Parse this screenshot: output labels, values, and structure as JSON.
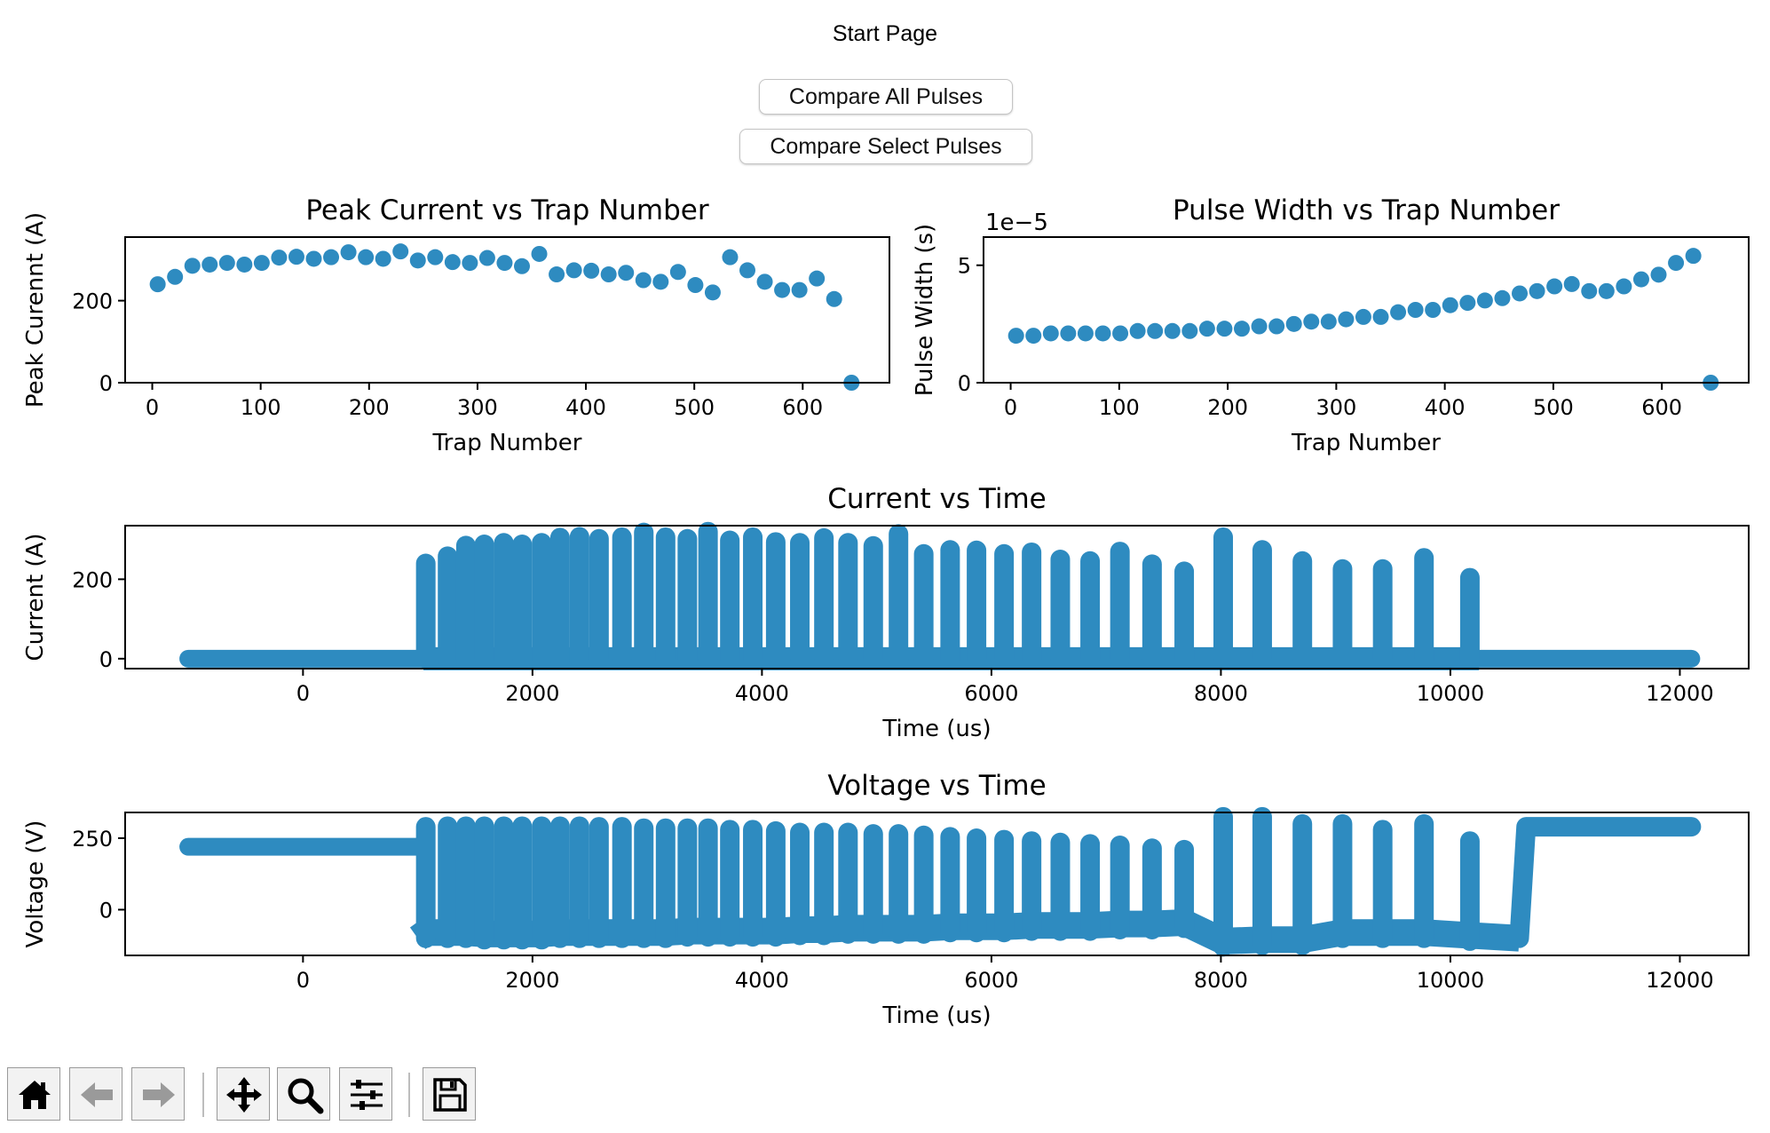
{
  "window": {
    "title": "Start Page"
  },
  "buttons": {
    "compare_all": "Compare All Pulses",
    "compare_select": "Compare Select Pulses"
  },
  "colors": {
    "series": "#2e8bc0",
    "axes": "#000000"
  },
  "toolbar": {
    "items": [
      {
        "name": "home",
        "icon": "home-icon"
      },
      {
        "name": "back",
        "icon": "arrow-left-icon"
      },
      {
        "name": "forward",
        "icon": "arrow-right-icon"
      },
      {
        "name": "pan",
        "icon": "move-icon"
      },
      {
        "name": "zoom",
        "icon": "magnifier-icon"
      },
      {
        "name": "configure",
        "icon": "sliders-icon"
      },
      {
        "name": "save",
        "icon": "floppy-disk-icon"
      }
    ]
  },
  "chart_data": [
    {
      "type": "scatter",
      "title": "Peak Current vs Trap Number",
      "xlabel": "Trap Number",
      "ylabel": "Peak Curennt (A)",
      "xlim": [
        -25,
        680
      ],
      "ylim": [
        0,
        355
      ],
      "xticks": [
        0,
        100,
        200,
        300,
        400,
        500,
        600
      ],
      "yticks": [
        0,
        200
      ],
      "offset_text": "",
      "x": [
        5,
        21,
        37,
        53,
        69,
        85,
        101,
        117,
        133,
        149,
        165,
        181,
        197,
        213,
        229,
        245,
        261,
        277,
        293,
        309,
        325,
        341,
        357,
        373,
        389,
        405,
        421,
        437,
        453,
        469,
        485,
        501,
        517,
        533,
        549,
        565,
        581,
        597,
        613,
        629,
        645
      ],
      "y": [
        240,
        258,
        285,
        288,
        292,
        288,
        292,
        305,
        307,
        302,
        306,
        318,
        306,
        302,
        320,
        298,
        306,
        294,
        292,
        304,
        292,
        284,
        314,
        264,
        274,
        273,
        264,
        268,
        250,
        246,
        270,
        238,
        220,
        306,
        274,
        246,
        226,
        226,
        254,
        204,
        0
      ]
    },
    {
      "type": "scatter",
      "title": "Pulse Width vs Trap Number",
      "xlabel": "Trap Number",
      "ylabel": "Pulse Width (s)",
      "xlim": [
        -25,
        680
      ],
      "ylim": [
        0,
        6.2
      ],
      "xticks": [
        0,
        100,
        200,
        300,
        400,
        500,
        600
      ],
      "yticks": [
        0,
        5
      ],
      "offset_text": "1e−5",
      "x": [
        5,
        21,
        37,
        53,
        69,
        85,
        101,
        117,
        133,
        149,
        165,
        181,
        197,
        213,
        229,
        245,
        261,
        277,
        293,
        309,
        325,
        341,
        357,
        373,
        389,
        405,
        421,
        437,
        453,
        469,
        485,
        501,
        517,
        533,
        549,
        565,
        581,
        597,
        613,
        629,
        645
      ],
      "y": [
        2.0,
        2.0,
        2.1,
        2.1,
        2.1,
        2.1,
        2.1,
        2.2,
        2.2,
        2.2,
        2.2,
        2.3,
        2.3,
        2.3,
        2.4,
        2.4,
        2.5,
        2.6,
        2.6,
        2.7,
        2.8,
        2.8,
        3.0,
        3.1,
        3.1,
        3.3,
        3.4,
        3.5,
        3.6,
        3.8,
        3.9,
        4.1,
        4.2,
        3.9,
        3.9,
        4.1,
        4.4,
        4.6,
        5.1,
        5.4,
        0
      ]
    },
    {
      "type": "line",
      "title": "Current vs Time",
      "xlabel": "Time (us)",
      "ylabel": "Current (A)",
      "xlim": [
        -1550,
        12600
      ],
      "ylim": [
        -25,
        335
      ],
      "xticks": [
        0,
        2000,
        4000,
        6000,
        8000,
        10000,
        12000
      ],
      "yticks": [
        0,
        200
      ],
      "signal": {
        "start": -1000,
        "end": 12100,
        "pulses_start": 1050,
        "pulses_end": 10250,
        "baseline": 0
      },
      "pulse_t": [
        1070,
        1260,
        1420,
        1580,
        1750,
        1910,
        2080,
        2240,
        2410,
        2580,
        2780,
        2970,
        3160,
        3350,
        3530,
        3720,
        3920,
        4120,
        4330,
        4540,
        4750,
        4970,
        5190,
        5410,
        5640,
        5870,
        6110,
        6350,
        6600,
        6860,
        7120,
        7400,
        7680,
        8020,
        8360,
        8710,
        9060,
        9410,
        9770,
        10170
      ],
      "pulse_peak": [
        240,
        258,
        285,
        288,
        292,
        288,
        292,
        305,
        307,
        302,
        306,
        318,
        306,
        302,
        320,
        298,
        306,
        294,
        292,
        304,
        292,
        284,
        314,
        264,
        274,
        273,
        264,
        268,
        250,
        246,
        270,
        238,
        220,
        306,
        274,
        246,
        226,
        226,
        254,
        204
      ]
    },
    {
      "type": "line",
      "title": "Voltage vs Time",
      "xlabel": "Time (us)",
      "ylabel": "Voltage (V)",
      "xlim": [
        -1550,
        12600
      ],
      "ylim": [
        -160,
        340
      ],
      "xticks": [
        0,
        2000,
        4000,
        6000,
        8000,
        10000,
        12000
      ],
      "yticks": [
        0,
        250
      ],
      "signal": {
        "pre_value": 220,
        "start": -1000,
        "pulses_start": 1000,
        "rise_t": 10600,
        "end": 12100,
        "final_value": 290
      },
      "pulse_t": [
        1070,
        1260,
        1420,
        1580,
        1750,
        1910,
        2080,
        2240,
        2410,
        2580,
        2780,
        2970,
        3160,
        3350,
        3530,
        3720,
        3920,
        4120,
        4330,
        4540,
        4750,
        4970,
        5190,
        5410,
        5640,
        5870,
        6110,
        6350,
        6600,
        6860,
        7120,
        7400,
        7680,
        8020,
        8360,
        8710,
        9060,
        9410,
        9770,
        10170
      ],
      "pulse_top": [
        290,
        292,
        292,
        292,
        292,
        292,
        292,
        292,
        292,
        290,
        290,
        285,
        285,
        285,
        285,
        280,
        280,
        275,
        270,
        270,
        270,
        265,
        265,
        260,
        255,
        250,
        245,
        240,
        235,
        230,
        225,
        215,
        210,
        325,
        325,
        300,
        300,
        280,
        300,
        240
      ],
      "pulse_bottom": [
        -100,
        -100,
        -100,
        -105,
        -105,
        -105,
        -105,
        -100,
        -100,
        -100,
        -100,
        -100,
        -100,
        -95,
        -95,
        -95,
        -95,
        -95,
        -90,
        -90,
        -85,
        -85,
        -85,
        -85,
        -80,
        -80,
        -80,
        -75,
        -75,
        -75,
        -70,
        -70,
        -65,
        -130,
        -125,
        -125,
        -100,
        -100,
        -100,
        -110
      ]
    }
  ]
}
